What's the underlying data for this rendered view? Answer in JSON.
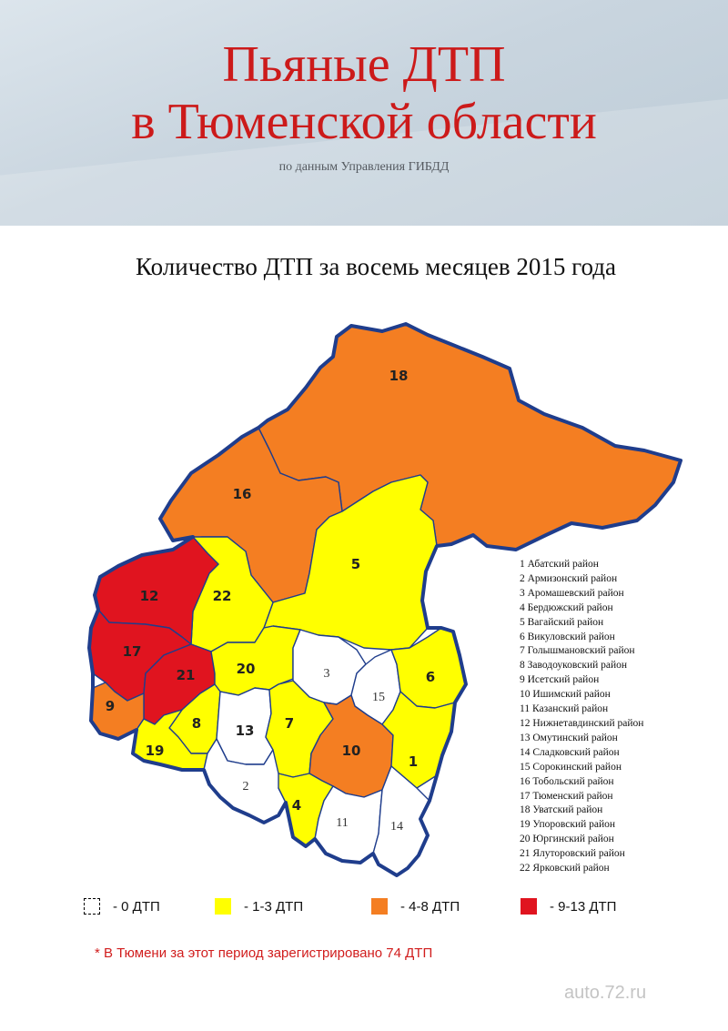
{
  "header": {
    "title_line1": "Пьяные ДТП",
    "title_line2": "в Тюменской области",
    "source": "по данным Управления ГИБДД"
  },
  "subtitle": "Количество ДТП за восемь месяцев 2015 года",
  "colors": {
    "zero": "#ffffff",
    "low": "#ffff00",
    "mid": "#f47e22",
    "high": "#e0141f",
    "border": "#1f3d8c",
    "title": "#cc1a1a"
  },
  "districts": [
    {
      "num": "1",
      "name": "1 Абатский район",
      "category": "low"
    },
    {
      "num": "2",
      "name": "2 Армизонский район",
      "category": "zero"
    },
    {
      "num": "3",
      "name": "3 Аромашевский район",
      "category": "zero"
    },
    {
      "num": "4",
      "name": "4 Бердюжский район",
      "category": "low"
    },
    {
      "num": "5",
      "name": "5 Вагайский район",
      "category": "low"
    },
    {
      "num": "6",
      "name": "6 Викуловский район",
      "category": "low"
    },
    {
      "num": "7",
      "name": "7 Голышмановский район",
      "category": "low"
    },
    {
      "num": "8",
      "name": "8 Заводоуковский район",
      "category": "low"
    },
    {
      "num": "9",
      "name": "9 Исетский район",
      "category": "mid"
    },
    {
      "num": "10",
      "name": "10 Ишимский район",
      "category": "mid"
    },
    {
      "num": "11",
      "name": "11 Казанский район",
      "category": "zero"
    },
    {
      "num": "12",
      "name": "12 Нижнетавдинский район",
      "category": "high"
    },
    {
      "num": "13",
      "name": "13 Омутинский район",
      "category": "zero"
    },
    {
      "num": "14",
      "name": "14 Сладковский район",
      "category": "zero"
    },
    {
      "num": "15",
      "name": "15 Сорокинский район",
      "category": "zero"
    },
    {
      "num": "16",
      "name": "16 Тобольский район",
      "category": "mid"
    },
    {
      "num": "17",
      "name": "17 Тюменский район",
      "category": "high"
    },
    {
      "num": "18",
      "name": "18 Уватский район",
      "category": "mid"
    },
    {
      "num": "19",
      "name": "19 Упоровский район",
      "category": "low"
    },
    {
      "num": "20",
      "name": "20 Юргинский район",
      "category": "low"
    },
    {
      "num": "21",
      "name": "21 Ялуторовский район",
      "category": "high"
    },
    {
      "num": "22",
      "name": "22 Ярковский район",
      "category": "low"
    }
  ],
  "legend": [
    {
      "label": "- 0 ДТП",
      "category": "zero"
    },
    {
      "label": "- 1-3 ДТП",
      "category": "low"
    },
    {
      "label": "- 4-8 ДТП",
      "category": "mid"
    },
    {
      "label": "- 9-13 ДТП",
      "category": "high"
    }
  ],
  "footnote": "* В Тюмени за этот период зарегистрировано 74 ДТП",
  "watermark": "auto.72.ru"
}
